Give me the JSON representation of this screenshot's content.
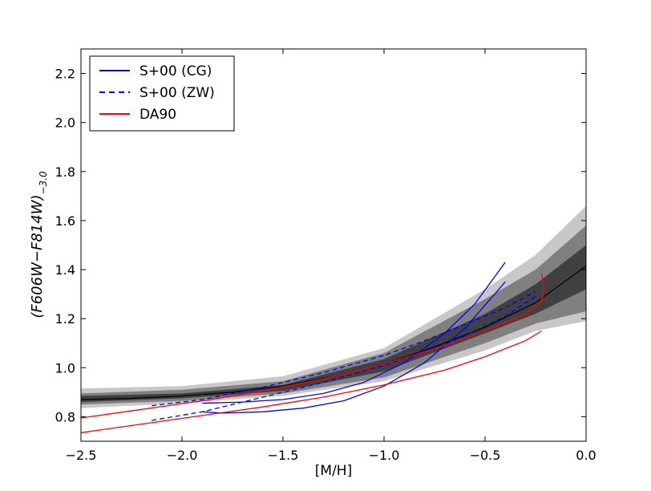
{
  "chart_data": {
    "type": "line",
    "title": "",
    "xlabel": "[M/H]",
    "ylabel": "(F606W−F814W)−3.0",
    "ylabel_main": "(F606W−F814W)",
    "ylabel_sub": "−3.0",
    "xlim": [
      -2.5,
      0.0
    ],
    "ylim": [
      0.7,
      2.3
    ],
    "xticks": [
      -2.5,
      -2.0,
      -1.5,
      -1.0,
      -0.5,
      0.0
    ],
    "xtick_labels": [
      "−2.5",
      "−2.0",
      "−1.5",
      "−1.0",
      "−0.5",
      "0.0"
    ],
    "yticks": [
      0.8,
      1.0,
      1.2,
      1.4,
      1.6,
      1.8,
      2.0,
      2.2
    ],
    "ytick_labels": [
      "0.8",
      "1.0",
      "1.2",
      "1.4",
      "1.6",
      "1.8",
      "2.0",
      "2.2"
    ],
    "grid": false,
    "legend_position": "upper-left",
    "legend": [
      {
        "label": "S+00 (CG)",
        "color": "#0000ff",
        "style": "solid"
      },
      {
        "label": "S+00 (ZW)",
        "color": "#0000ff",
        "style": "dashed"
      },
      {
        "label": "DA90",
        "color": "#ff0000",
        "style": "solid"
      }
    ],
    "bands": [
      {
        "color": "#c8c8c8",
        "x": [
          -2.5,
          -2.0,
          -1.5,
          -1.0,
          -0.5,
          -0.25,
          0.0
        ],
        "lower": [
          0.835,
          0.855,
          0.885,
          0.945,
          1.07,
          1.15,
          1.19
        ],
        "upper": [
          0.915,
          0.925,
          0.965,
          1.08,
          1.32,
          1.46,
          1.66
        ]
      },
      {
        "color": "#808080",
        "x": [
          -2.5,
          -2.0,
          -1.5,
          -1.0,
          -0.5,
          -0.25,
          0.0
        ],
        "lower": [
          0.85,
          0.865,
          0.895,
          0.96,
          1.1,
          1.18,
          1.23
        ],
        "upper": [
          0.895,
          0.91,
          0.945,
          1.06,
          1.28,
          1.4,
          1.58
        ]
      },
      {
        "color": "#404040",
        "x": [
          -2.5,
          -2.0,
          -1.5,
          -1.0,
          -0.5,
          -0.25,
          0.0
        ],
        "lower": [
          0.86,
          0.875,
          0.905,
          0.985,
          1.14,
          1.22,
          1.32
        ],
        "upper": [
          0.885,
          0.895,
          0.93,
          1.035,
          1.22,
          1.34,
          1.5
        ]
      }
    ],
    "series": [
      {
        "color": "#000000",
        "style": "solid",
        "width": 1.2,
        "x": [
          -2.5,
          -2.25,
          -2.0,
          -1.75,
          -1.5,
          -1.25,
          -1.0,
          -0.75,
          -0.5,
          -0.25,
          0.0
        ],
        "y": [
          0.87,
          0.875,
          0.885,
          0.9,
          0.925,
          0.965,
          1.015,
          1.085,
          1.165,
          1.265,
          1.415
        ]
      },
      {
        "name": "S+00 (CG)",
        "color": "#0000ff",
        "style": "solid",
        "width": 1.3,
        "x": [
          -1.9,
          -1.7,
          -1.5,
          -1.3,
          -1.1,
          -0.9,
          -0.7,
          -0.55,
          -0.4
        ],
        "y": [
          0.855,
          0.86,
          0.87,
          0.895,
          0.94,
          1.02,
          1.14,
          1.26,
          1.43
        ]
      },
      {
        "name": "S+00 (CG)",
        "color": "#0000ff",
        "style": "solid",
        "width": 1.3,
        "x": [
          -1.9,
          -1.8,
          -1.6,
          -1.4,
          -1.2,
          -1.0,
          -0.8,
          -0.6,
          -0.4
        ],
        "y": [
          0.82,
          0.815,
          0.82,
          0.835,
          0.865,
          0.925,
          1.02,
          1.16,
          1.35
        ]
      },
      {
        "name": "S+00 (ZW)",
        "color": "#0000ff",
        "style": "dashed",
        "width": 1.3,
        "x": [
          -2.15,
          -1.9,
          -1.6,
          -1.3,
          -1.0,
          -0.8,
          -0.6,
          -0.4,
          -0.25
        ],
        "y": [
          0.845,
          0.87,
          0.92,
          0.98,
          1.05,
          1.11,
          1.175,
          1.245,
          1.31
        ]
      },
      {
        "name": "S+00 (ZW)",
        "color": "#0000ff",
        "style": "dashed",
        "width": 1.3,
        "x": [
          -2.15,
          -1.9,
          -1.6,
          -1.3,
          -1.0,
          -0.8,
          -0.6,
          -0.4,
          -0.25
        ],
        "y": [
          0.785,
          0.82,
          0.88,
          0.94,
          1.01,
          1.065,
          1.13,
          1.21,
          1.29
        ]
      },
      {
        "name": "DA90",
        "color": "#ff0000",
        "style": "solid",
        "width": 1.3,
        "x": [
          -2.5,
          -2.2,
          -1.9,
          -1.6,
          -1.3,
          -1.0,
          -0.7,
          -0.5,
          -0.3,
          -0.22,
          -0.21,
          -0.22
        ],
        "y": [
          0.795,
          0.83,
          0.865,
          0.905,
          0.955,
          1.015,
          1.09,
          1.15,
          1.22,
          1.27,
          1.33,
          1.385
        ]
      },
      {
        "name": "DA90",
        "color": "#ff0000",
        "style": "solid",
        "width": 1.3,
        "x": [
          -2.5,
          -2.2,
          -1.9,
          -1.6,
          -1.3,
          -1.0,
          -0.7,
          -0.5,
          -0.3,
          -0.22
        ],
        "y": [
          0.735,
          0.77,
          0.805,
          0.84,
          0.88,
          0.93,
          0.99,
          1.045,
          1.11,
          1.15
        ]
      }
    ]
  }
}
